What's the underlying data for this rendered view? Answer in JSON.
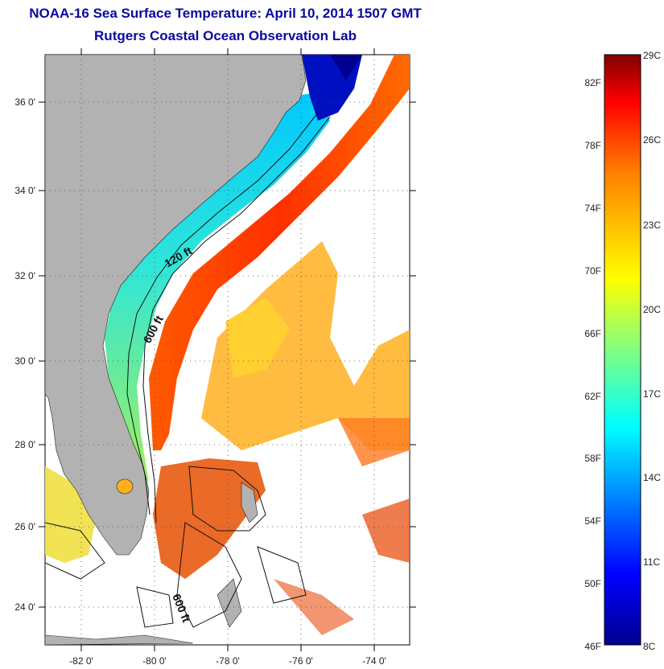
{
  "title": "NOAA-16 Sea Surface Temperature:  April 10, 2014 1507 GMT",
  "subtitle": "Rutgers Coastal Ocean Observation Lab",
  "map": {
    "lon_ticks": [
      "-82 0'",
      "-80 0'",
      "-78 0'",
      "-76 0'",
      "-74 0'"
    ],
    "lat_ticks": [
      "36 0'",
      "34 0'",
      "32 0'",
      "30 0'",
      "28 0'",
      "26 0'",
      "24 0'"
    ],
    "contours": [
      "120 ft",
      "600 ft",
      "600 ft"
    ],
    "colors": {
      "land": "#b2b2b2",
      "no_data": "#ffffff"
    }
  },
  "colorbar": {
    "fahrenheit_labels": [
      "82F",
      "78F",
      "74F",
      "70F",
      "66F",
      "62F",
      "58F",
      "54F",
      "50F",
      "46F"
    ],
    "celsius_labels": [
      "29C",
      "26C",
      "23C",
      "20C",
      "17C",
      "14C",
      "11C",
      "8C"
    ],
    "colormap": [
      "#00008f",
      "#0000ff",
      "#0080ff",
      "#00ffff",
      "#80ff80",
      "#ffff00",
      "#ff8000",
      "#ff0000",
      "#800000"
    ]
  }
}
